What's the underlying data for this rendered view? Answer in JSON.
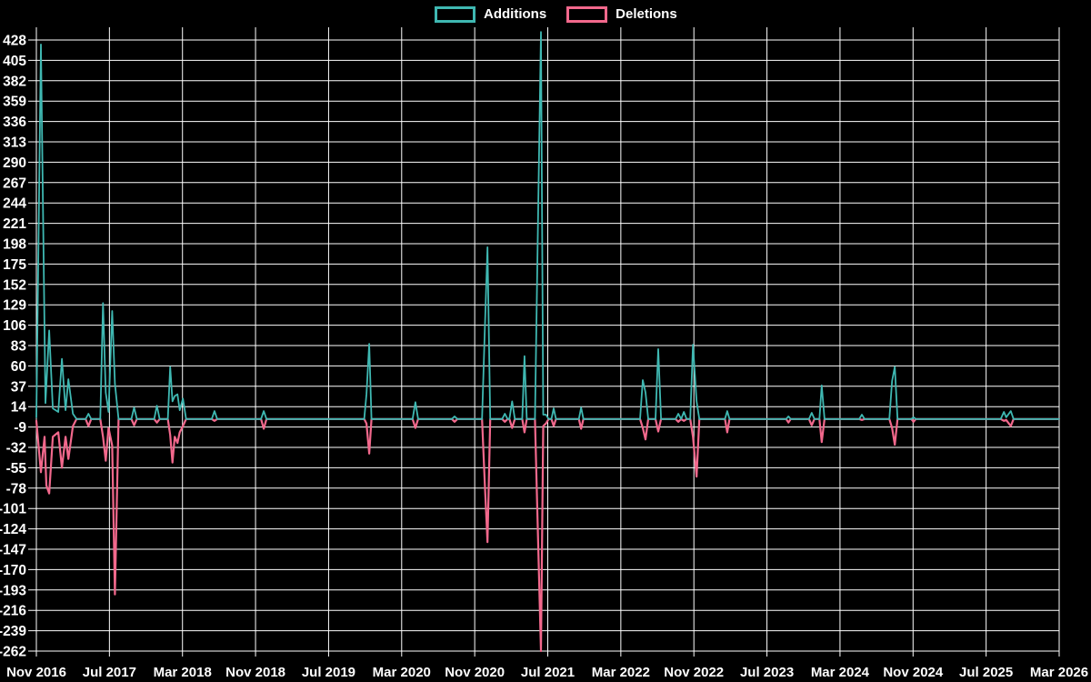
{
  "legend": {
    "additions_label": "Additions",
    "deletions_label": "Deletions"
  },
  "colors": {
    "background": "#000000",
    "additions": "#3FB8B2",
    "deletions": "#F2688C",
    "grid": "#FFFFFF",
    "text": "#FFFFFF"
  },
  "chart_data": {
    "type": "line",
    "title": "",
    "xlabel": "",
    "ylabel": "",
    "legend_position": "top-center",
    "grid": true,
    "ylim": [
      -262,
      442
    ],
    "y_tick_step": 23,
    "y_ticks": [
      428,
      405,
      382,
      359,
      336,
      313,
      290,
      267,
      244,
      221,
      198,
      175,
      152,
      129,
      106,
      83,
      60,
      37,
      14,
      -9,
      -32,
      -55,
      -78,
      -101,
      -124,
      -147,
      -170,
      -193,
      -216,
      -239,
      -262
    ],
    "x_labels": [
      "Nov 2016",
      "Jul 2017",
      "Mar 2018",
      "Nov 2018",
      "Jul 2019",
      "Mar 2020",
      "Nov 2020",
      "Jul 2021",
      "Mar 2022",
      "Nov 2022",
      "Jul 2023",
      "Mar 2024",
      "Nov 2024",
      "Jul 2025",
      "Mar 2026"
    ],
    "x_unit": "months since Nov 2016",
    "x_range_months": 112,
    "series": [
      {
        "name": "Additions",
        "color_key": "additions",
        "points": [
          [
            0.0,
            2
          ],
          [
            0.5,
            423
          ],
          [
            1.0,
            18
          ],
          [
            1.4,
            100
          ],
          [
            1.8,
            12
          ],
          [
            2.4,
            8
          ],
          [
            2.8,
            68
          ],
          [
            3.2,
            10
          ],
          [
            3.5,
            45
          ],
          [
            4.0,
            6
          ],
          [
            4.4,
            0
          ],
          [
            5.4,
            0
          ],
          [
            5.7,
            6
          ],
          [
            6.0,
            0
          ],
          [
            7.0,
            0
          ],
          [
            7.3,
            131
          ],
          [
            7.6,
            30
          ],
          [
            7.9,
            8
          ],
          [
            8.3,
            122
          ],
          [
            8.6,
            40
          ],
          [
            9.0,
            0
          ],
          [
            10.4,
            0
          ],
          [
            10.7,
            13
          ],
          [
            11.0,
            0
          ],
          [
            12.9,
            0
          ],
          [
            13.2,
            15
          ],
          [
            13.5,
            0
          ],
          [
            14.4,
            0
          ],
          [
            14.65,
            59
          ],
          [
            14.9,
            20
          ],
          [
            15.15,
            26
          ],
          [
            15.45,
            28
          ],
          [
            15.7,
            10
          ],
          [
            16.05,
            23
          ],
          [
            16.4,
            0
          ],
          [
            19.2,
            0
          ],
          [
            19.5,
            9
          ],
          [
            19.8,
            0
          ],
          [
            24.6,
            0
          ],
          [
            24.9,
            9
          ],
          [
            25.2,
            0
          ],
          [
            35.9,
            0
          ],
          [
            36.15,
            28
          ],
          [
            36.45,
            85
          ],
          [
            36.7,
            0
          ],
          [
            41.2,
            0
          ],
          [
            41.5,
            19
          ],
          [
            41.8,
            0
          ],
          [
            45.5,
            0
          ],
          [
            45.8,
            3
          ],
          [
            46.1,
            0
          ],
          [
            48.8,
            0
          ],
          [
            49.1,
            99
          ],
          [
            49.4,
            194
          ],
          [
            49.7,
            0
          ],
          [
            51.0,
            0
          ],
          [
            51.3,
            6
          ],
          [
            51.6,
            0
          ],
          [
            51.8,
            0
          ],
          [
            52.1,
            20
          ],
          [
            52.4,
            0
          ],
          [
            53.2,
            0
          ],
          [
            53.45,
            71
          ],
          [
            53.7,
            0
          ],
          [
            54.6,
            0
          ],
          [
            54.85,
            166
          ],
          [
            55.25,
            437
          ],
          [
            55.5,
            5
          ],
          [
            55.8,
            5
          ],
          [
            56.1,
            0
          ],
          [
            56.4,
            0
          ],
          [
            56.65,
            12
          ],
          [
            56.9,
            0
          ],
          [
            59.4,
            0
          ],
          [
            59.65,
            13
          ],
          [
            59.9,
            0
          ],
          [
            66.1,
            0
          ],
          [
            66.4,
            44
          ],
          [
            66.7,
            30
          ],
          [
            67.0,
            0
          ],
          [
            67.8,
            0
          ],
          [
            68.1,
            79
          ],
          [
            68.4,
            0
          ],
          [
            70.0,
            0
          ],
          [
            70.3,
            6
          ],
          [
            70.6,
            0
          ],
          [
            70.9,
            8
          ],
          [
            71.2,
            0
          ],
          [
            71.6,
            0
          ],
          [
            71.9,
            84
          ],
          [
            72.3,
            20
          ],
          [
            72.6,
            0
          ],
          [
            75.4,
            0
          ],
          [
            75.65,
            9
          ],
          [
            75.9,
            0
          ],
          [
            82.1,
            0
          ],
          [
            82.35,
            3
          ],
          [
            82.6,
            0
          ],
          [
            84.6,
            0
          ],
          [
            84.9,
            7
          ],
          [
            85.2,
            0
          ],
          [
            85.75,
            0
          ],
          [
            86.0,
            38
          ],
          [
            86.3,
            0
          ],
          [
            90.1,
            0
          ],
          [
            90.4,
            5
          ],
          [
            90.7,
            0
          ],
          [
            93.4,
            0
          ],
          [
            93.7,
            43
          ],
          [
            94.0,
            59
          ],
          [
            94.3,
            0
          ],
          [
            95.8,
            0
          ],
          [
            96.05,
            2
          ],
          [
            96.3,
            0
          ],
          [
            105.6,
            0
          ],
          [
            105.95,
            8
          ],
          [
            106.2,
            2
          ],
          [
            106.7,
            9
          ],
          [
            107.0,
            0
          ],
          [
            112,
            0
          ]
        ]
      },
      {
        "name": "Deletions",
        "color_key": "deletions",
        "points": [
          [
            0.0,
            -2
          ],
          [
            0.5,
            -60
          ],
          [
            0.9,
            -20
          ],
          [
            1.1,
            -75
          ],
          [
            1.4,
            -84
          ],
          [
            1.8,
            -20
          ],
          [
            2.4,
            -15
          ],
          [
            2.8,
            -55
          ],
          [
            3.2,
            -20
          ],
          [
            3.5,
            -45
          ],
          [
            4.0,
            -8
          ],
          [
            4.4,
            0
          ],
          [
            5.4,
            0
          ],
          [
            5.7,
            -8
          ],
          [
            6.0,
            0
          ],
          [
            7.0,
            0
          ],
          [
            7.3,
            -20
          ],
          [
            7.6,
            -47
          ],
          [
            7.9,
            -10
          ],
          [
            8.3,
            -30
          ],
          [
            8.6,
            -198
          ],
          [
            9.0,
            0
          ],
          [
            10.4,
            0
          ],
          [
            10.7,
            -7
          ],
          [
            11.0,
            0
          ],
          [
            12.9,
            0
          ],
          [
            13.2,
            -4
          ],
          [
            13.5,
            0
          ],
          [
            14.4,
            0
          ],
          [
            14.65,
            -18
          ],
          [
            14.9,
            -49
          ],
          [
            15.15,
            -20
          ],
          [
            15.45,
            -27
          ],
          [
            15.7,
            -15
          ],
          [
            16.05,
            -8
          ],
          [
            16.4,
            0
          ],
          [
            19.2,
            0
          ],
          [
            19.5,
            -2
          ],
          [
            19.8,
            0
          ],
          [
            24.6,
            0
          ],
          [
            24.9,
            -11
          ],
          [
            25.2,
            0
          ],
          [
            35.9,
            0
          ],
          [
            36.15,
            -5
          ],
          [
            36.45,
            -39
          ],
          [
            36.7,
            0
          ],
          [
            41.2,
            0
          ],
          [
            41.5,
            -10
          ],
          [
            41.8,
            0
          ],
          [
            45.5,
            0
          ],
          [
            45.8,
            -3
          ],
          [
            46.1,
            0
          ],
          [
            48.8,
            0
          ],
          [
            49.1,
            -72
          ],
          [
            49.4,
            -139
          ],
          [
            49.7,
            0
          ],
          [
            51.0,
            0
          ],
          [
            51.3,
            -3
          ],
          [
            51.6,
            0
          ],
          [
            51.8,
            0
          ],
          [
            52.1,
            -10
          ],
          [
            52.4,
            0
          ],
          [
            53.2,
            0
          ],
          [
            53.45,
            -15
          ],
          [
            53.7,
            0
          ],
          [
            54.6,
            0
          ],
          [
            54.85,
            -99
          ],
          [
            55.25,
            -262
          ],
          [
            55.5,
            -8
          ],
          [
            55.8,
            -5
          ],
          [
            56.1,
            0
          ],
          [
            56.4,
            0
          ],
          [
            56.65,
            -8
          ],
          [
            56.9,
            0
          ],
          [
            59.4,
            0
          ],
          [
            59.65,
            -11
          ],
          [
            59.9,
            0
          ],
          [
            66.1,
            0
          ],
          [
            66.4,
            -10
          ],
          [
            66.7,
            -23
          ],
          [
            67.0,
            0
          ],
          [
            67.8,
            0
          ],
          [
            68.1,
            -14
          ],
          [
            68.4,
            0
          ],
          [
            70.0,
            0
          ],
          [
            70.3,
            -3
          ],
          [
            70.6,
            0
          ],
          [
            70.9,
            -2
          ],
          [
            71.2,
            0
          ],
          [
            71.6,
            0
          ],
          [
            71.9,
            -20
          ],
          [
            72.3,
            -65
          ],
          [
            72.6,
            0
          ],
          [
            75.4,
            0
          ],
          [
            75.65,
            -15
          ],
          [
            75.9,
            0
          ],
          [
            82.1,
            0
          ],
          [
            82.35,
            -4
          ],
          [
            82.6,
            0
          ],
          [
            84.6,
            0
          ],
          [
            84.9,
            -7
          ],
          [
            85.2,
            0
          ],
          [
            85.75,
            0
          ],
          [
            86.0,
            -26
          ],
          [
            86.3,
            0
          ],
          [
            90.1,
            0
          ],
          [
            90.4,
            -1
          ],
          [
            90.7,
            0
          ],
          [
            93.4,
            0
          ],
          [
            93.7,
            -10
          ],
          [
            94.0,
            -29
          ],
          [
            94.3,
            0
          ],
          [
            95.8,
            0
          ],
          [
            96.05,
            -3
          ],
          [
            96.3,
            0
          ],
          [
            105.6,
            0
          ],
          [
            105.95,
            -2
          ],
          [
            106.2,
            -1
          ],
          [
            106.7,
            -8
          ],
          [
            107.0,
            0
          ],
          [
            112,
            0
          ]
        ]
      }
    ]
  }
}
